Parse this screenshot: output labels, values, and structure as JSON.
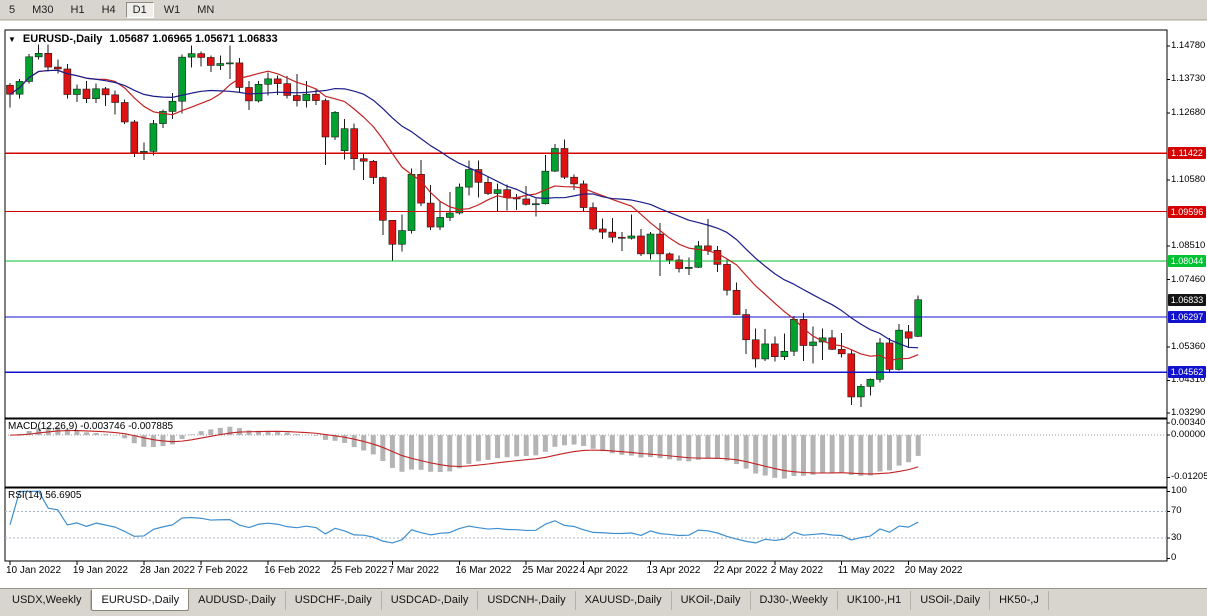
{
  "toolbar": {
    "timeframes": [
      {
        "label": "5",
        "active": false
      },
      {
        "label": "M30",
        "active": false
      },
      {
        "label": "H1",
        "active": false
      },
      {
        "label": "H4",
        "active": false
      },
      {
        "label": "D1",
        "active": true
      },
      {
        "label": "W1",
        "active": false
      },
      {
        "label": "MN",
        "active": false
      }
    ]
  },
  "chart": {
    "marker": "▼",
    "symbol": "EURUSD-,Daily",
    "ohlc": "1.05687 1.06965 1.05671 1.06833",
    "colors": {
      "up": "#00A12F",
      "down": "#DE1212",
      "wick": "#1A1A1A",
      "macd_hist": "#B4B4B4",
      "macd_signal": "#C22222",
      "rsi_line": "#3F8FCF"
    },
    "price_axis": {
      "labels": [
        {
          "text": "1.14780",
          "value": 1.1478
        },
        {
          "text": "1.13730",
          "value": 1.1373
        },
        {
          "text": "1.12680",
          "value": 1.1268
        },
        {
          "text": "1.10580",
          "value": 1.1058
        },
        {
          "text": "1.08510",
          "value": 1.0851
        },
        {
          "text": "1.07460",
          "value": 1.0746
        },
        {
          "text": "1.05360",
          "value": 1.0536
        },
        {
          "text": "1.04310",
          "value": 1.0431
        },
        {
          "text": "1.03290",
          "value": 1.0329
        }
      ],
      "badges": [
        {
          "text": "1.11422",
          "value": 1.11422,
          "color": "#D40000"
        },
        {
          "text": "1.09596",
          "value": 1.09596,
          "color": "#D40000"
        },
        {
          "text": "1.08044",
          "value": 1.08044,
          "color": "#00C232"
        },
        {
          "text": "1.06833",
          "value": 1.06833,
          "color": "#141414"
        },
        {
          "text": "1.06297",
          "value": 1.06297,
          "color": "#1212CC"
        },
        {
          "text": "1.04562",
          "value": 1.04562,
          "color": "#1212CC"
        }
      ]
    }
  },
  "macd_panel": {
    "label": "MACD(12,26,9) -0.003746 -0.007885",
    "axis": [
      {
        "text": "0.00340",
        "value": 0.0034
      },
      {
        "text": "0.00000",
        "value": 0
      },
      {
        "text": "-0.01205",
        "value": -0.01205
      }
    ]
  },
  "rsi_panel": {
    "label": "RSI(14) 56.6905",
    "axis": [
      {
        "text": "100",
        "value": 100
      },
      {
        "text": "70",
        "value": 70
      },
      {
        "text": "30",
        "value": 30
      },
      {
        "text": "0",
        "value": 0
      }
    ],
    "levels": [
      70,
      30
    ]
  },
  "x_axis": [
    {
      "text": "10 Jan 2022",
      "index": 0
    },
    {
      "text": "19 Jan 2022",
      "index": 7
    },
    {
      "text": "28 Jan 2022",
      "index": 14
    },
    {
      "text": "7 Feb 2022",
      "index": 20
    },
    {
      "text": "16 Feb 2022",
      "index": 27
    },
    {
      "text": "25 Feb 2022",
      "index": 34
    },
    {
      "text": "7 Mar 2022",
      "index": 40
    },
    {
      "text": "16 Mar 2022",
      "index": 47
    },
    {
      "text": "25 Mar 2022",
      "index": 54
    },
    {
      "text": "4 Apr 2022",
      "index": 60
    },
    {
      "text": "13 Apr 2022",
      "index": 67
    },
    {
      "text": "22 Apr 2022",
      "index": 74
    },
    {
      "text": "2 May 2022",
      "index": 80
    },
    {
      "text": "11 May 2022",
      "index": 87
    },
    {
      "text": "20 May 2022",
      "index": 94
    }
  ],
  "tabs": [
    {
      "label": "USDX,Weekly",
      "active": false
    },
    {
      "label": "EURUSD-,Daily",
      "active": true
    },
    {
      "label": "AUDUSD-,Daily",
      "active": false
    },
    {
      "label": "USDCHF-,Daily",
      "active": false
    },
    {
      "label": "USDCAD-,Daily",
      "active": false
    },
    {
      "label": "USDCNH-,Daily",
      "active": false
    },
    {
      "label": "XAUUSD-,Daily",
      "active": false
    },
    {
      "label": "UKOil-,Daily",
      "active": false
    },
    {
      "label": "DJ30-,Weekly",
      "active": false
    },
    {
      "label": "UK100-,H1",
      "active": false
    },
    {
      "label": "USOil-,Daily",
      "active": false
    },
    {
      "label": "HK50-,J",
      "active": false
    }
  ],
  "chart_data": {
    "type": "candlestick",
    "symbol": "EURUSD",
    "timeframe": "Daily",
    "title": "EURUSD-,Daily 1.05687 1.06965 1.05671 1.06833",
    "ylim": [
      1.0313,
      1.1528
    ],
    "dates": [
      "2022-01-10",
      "2022-01-11",
      "2022-01-12",
      "2022-01-13",
      "2022-01-14",
      "2022-01-17",
      "2022-01-18",
      "2022-01-19",
      "2022-01-20",
      "2022-01-21",
      "2022-01-24",
      "2022-01-25",
      "2022-01-26",
      "2022-01-27",
      "2022-01-28",
      "2022-01-31",
      "2022-02-01",
      "2022-02-02",
      "2022-02-03",
      "2022-02-04",
      "2022-02-07",
      "2022-02-08",
      "2022-02-09",
      "2022-02-10",
      "2022-02-11",
      "2022-02-14",
      "2022-02-15",
      "2022-02-16",
      "2022-02-17",
      "2022-02-18",
      "2022-02-21",
      "2022-02-22",
      "2022-02-23",
      "2022-02-24",
      "2022-02-25",
      "2022-02-28",
      "2022-03-01",
      "2022-03-02",
      "2022-03-03",
      "2022-03-04",
      "2022-03-07",
      "2022-03-08",
      "2022-03-09",
      "2022-03-10",
      "2022-03-11",
      "2022-03-14",
      "2022-03-15",
      "2022-03-16",
      "2022-03-17",
      "2022-03-18",
      "2022-03-21",
      "2022-03-22",
      "2022-03-23",
      "2022-03-24",
      "2022-03-25",
      "2022-03-28",
      "2022-03-29",
      "2022-03-30",
      "2022-03-31",
      "2022-04-01",
      "2022-04-04",
      "2022-04-05",
      "2022-04-06",
      "2022-04-07",
      "2022-04-08",
      "2022-04-11",
      "2022-04-12",
      "2022-04-13",
      "2022-04-14",
      "2022-04-15",
      "2022-04-18",
      "2022-04-19",
      "2022-04-20",
      "2022-04-21",
      "2022-04-22",
      "2022-04-25",
      "2022-04-26",
      "2022-04-27",
      "2022-04-28",
      "2022-04-29",
      "2022-05-02",
      "2022-05-03",
      "2022-05-04",
      "2022-05-05",
      "2022-05-06",
      "2022-05-09",
      "2022-05-10",
      "2022-05-11",
      "2022-05-12",
      "2022-05-13",
      "2022-05-16",
      "2022-05-17",
      "2022-05-18",
      "2022-05-19",
      "2022-05-20",
      "2022-05-23"
    ],
    "ohlc": [
      [
        1.1355,
        1.1362,
        1.1285,
        1.1327
      ],
      [
        1.1327,
        1.1375,
        1.1314,
        1.1367
      ],
      [
        1.1367,
        1.1453,
        1.1361,
        1.1444
      ],
      [
        1.1444,
        1.1482,
        1.1435,
        1.1455
      ],
      [
        1.1455,
        1.1483,
        1.1398,
        1.1412
      ],
      [
        1.1412,
        1.1435,
        1.1392,
        1.1406
      ],
      [
        1.1406,
        1.1422,
        1.1314,
        1.1326
      ],
      [
        1.1326,
        1.1358,
        1.1302,
        1.1343
      ],
      [
        1.1343,
        1.1369,
        1.13,
        1.1313
      ],
      [
        1.1313,
        1.136,
        1.13,
        1.1344
      ],
      [
        1.1344,
        1.1349,
        1.129,
        1.1325
      ],
      [
        1.1325,
        1.1339,
        1.1263,
        1.1301
      ],
      [
        1.1301,
        1.131,
        1.1234,
        1.124
      ],
      [
        1.124,
        1.1246,
        1.1131,
        1.1144
      ],
      [
        1.1144,
        1.1175,
        1.1121,
        1.1148
      ],
      [
        1.1148,
        1.1246,
        1.1135,
        1.1235
      ],
      [
        1.1235,
        1.1279,
        1.1221,
        1.1273
      ],
      [
        1.1273,
        1.133,
        1.125,
        1.1305
      ],
      [
        1.1305,
        1.1452,
        1.1266,
        1.1443
      ],
      [
        1.1443,
        1.148,
        1.1411,
        1.1454
      ],
      [
        1.1454,
        1.146,
        1.1414,
        1.1442
      ],
      [
        1.1442,
        1.1448,
        1.1396,
        1.1417
      ],
      [
        1.1417,
        1.1448,
        1.1403,
        1.1423
      ],
      [
        1.1423,
        1.148,
        1.1375,
        1.1425
      ],
      [
        1.1425,
        1.144,
        1.133,
        1.1348
      ],
      [
        1.1348,
        1.1369,
        1.1278,
        1.1306
      ],
      [
        1.1306,
        1.1369,
        1.1301,
        1.1358
      ],
      [
        1.1358,
        1.1395,
        1.1323,
        1.1375
      ],
      [
        1.1375,
        1.1385,
        1.1324,
        1.136
      ],
      [
        1.136,
        1.1384,
        1.1313,
        1.1323
      ],
      [
        1.1323,
        1.139,
        1.1288,
        1.1307
      ],
      [
        1.1307,
        1.1368,
        1.1286,
        1.1327
      ],
      [
        1.1327,
        1.1342,
        1.1293,
        1.1307
      ],
      [
        1.1307,
        1.1314,
        1.1106,
        1.1193
      ],
      [
        1.1193,
        1.1274,
        1.1184,
        1.127
      ],
      [
        1.115,
        1.125,
        1.1122,
        1.1219
      ],
      [
        1.1219,
        1.1235,
        1.109,
        1.1125
      ],
      [
        1.1125,
        1.1144,
        1.1058,
        1.1117
      ],
      [
        1.1117,
        1.1121,
        1.1045,
        1.1066
      ],
      [
        1.1066,
        1.1069,
        1.0886,
        1.0932
      ],
      [
        1.0932,
        1.0932,
        1.0806,
        1.0857
      ],
      [
        1.0857,
        1.095,
        1.0834,
        1.09
      ],
      [
        1.09,
        1.1095,
        1.0891,
        1.1076
      ],
      [
        1.1076,
        1.1121,
        1.0977,
        1.0986
      ],
      [
        1.0986,
        1.1043,
        1.0901,
        1.0911
      ],
      [
        1.0911,
        1.0992,
        1.0901,
        1.0941
      ],
      [
        1.0941,
        1.102,
        1.093,
        1.0955
      ],
      [
        1.0955,
        1.1047,
        1.095,
        1.1036
      ],
      [
        1.1036,
        1.1119,
        1.1009,
        1.1091
      ],
      [
        1.1091,
        1.1119,
        1.1003,
        1.1051
      ],
      [
        1.1051,
        1.1069,
        1.1012,
        1.1016
      ],
      [
        1.1016,
        1.1047,
        1.0961,
        1.1028
      ],
      [
        1.1028,
        1.1044,
        1.0963,
        1.1003
      ],
      [
        1.1003,
        1.1014,
        1.0965,
        1.0999
      ],
      [
        1.0999,
        1.1039,
        1.0979,
        1.0982
      ],
      [
        1.0982,
        1.1,
        1.0944,
        1.0984
      ],
      [
        1.0984,
        1.1137,
        1.0982,
        1.1086
      ],
      [
        1.1086,
        1.1171,
        1.1084,
        1.1157
      ],
      [
        1.1157,
        1.1185,
        1.1061,
        1.1067
      ],
      [
        1.1067,
        1.1076,
        1.1027,
        1.1046
      ],
      [
        1.1046,
        1.1056,
        1.096,
        1.0972
      ],
      [
        1.0972,
        1.0988,
        1.09,
        1.0905
      ],
      [
        1.0905,
        1.0937,
        1.0874,
        1.0895
      ],
      [
        1.0895,
        1.0939,
        1.0862,
        1.0879
      ],
      [
        1.0879,
        1.0896,
        1.0836,
        1.0876
      ],
      [
        1.0876,
        1.095,
        1.0872,
        1.0883
      ],
      [
        1.0883,
        1.0905,
        1.0821,
        1.0827
      ],
      [
        1.0827,
        1.0895,
        1.0809,
        1.0889
      ],
      [
        1.0889,
        1.0924,
        1.0757,
        1.0827
      ],
      [
        1.0827,
        1.0832,
        1.0796,
        1.0808
      ],
      [
        1.0808,
        1.0822,
        1.0769,
        1.0781
      ],
      [
        1.0781,
        1.0815,
        1.0761,
        1.0785
      ],
      [
        1.0785,
        1.0867,
        1.0782,
        1.0852
      ],
      [
        1.0852,
        1.0936,
        1.0824,
        1.0838
      ],
      [
        1.0838,
        1.0852,
        1.077,
        1.0794
      ],
      [
        1.0794,
        1.081,
        1.0697,
        1.0713
      ],
      [
        1.0713,
        1.0738,
        1.0635,
        1.0637
      ],
      [
        1.0637,
        1.0655,
        1.0514,
        1.0558
      ],
      [
        1.0558,
        1.0594,
        1.0471,
        1.0498
      ],
      [
        1.0498,
        1.0592,
        1.0492,
        1.0545
      ],
      [
        1.0545,
        1.0568,
        1.049,
        1.0505
      ],
      [
        1.0505,
        1.0578,
        1.0494,
        1.0522
      ],
      [
        1.0522,
        1.0632,
        1.0507,
        1.0622
      ],
      [
        1.0622,
        1.0642,
        1.0492,
        1.054
      ],
      [
        1.054,
        1.0599,
        1.0483,
        1.0551
      ],
      [
        1.0551,
        1.0594,
        1.0495,
        1.0564
      ],
      [
        1.0564,
        1.0588,
        1.0526,
        1.0528
      ],
      [
        1.0528,
        1.0579,
        1.0502,
        1.0514
      ],
      [
        1.0514,
        1.0525,
        1.0354,
        1.0379
      ],
      [
        1.0379,
        1.042,
        1.0348,
        1.0412
      ],
      [
        1.0412,
        1.0437,
        1.0384,
        1.0434
      ],
      [
        1.0434,
        1.0564,
        1.0424,
        1.0548
      ],
      [
        1.0548,
        1.0564,
        1.0459,
        1.0465
      ],
      [
        1.0465,
        1.0607,
        1.0462,
        1.0588
      ],
      [
        1.0583,
        1.0604,
        1.0532,
        1.0563
      ],
      [
        1.05687,
        1.06965,
        1.05671,
        1.06833
      ]
    ],
    "h_lines": [
      {
        "value": 1.11422,
        "color": "#D40000",
        "type": "resistance"
      },
      {
        "value": 1.09596,
        "color": "#D40000",
        "type": "resistance"
      },
      {
        "value": 1.08044,
        "color": "#00C232",
        "type": "level"
      },
      {
        "value": 1.06297,
        "color": "#1212CC",
        "type": "support"
      },
      {
        "value": 1.04562,
        "color": "#1212CC",
        "type": "support"
      }
    ],
    "moving_averages": [
      {
        "period": 10,
        "color": "#C22222"
      },
      {
        "period": 20,
        "color": "#1C1C8A"
      }
    ],
    "macd": {
      "fast": 12,
      "slow": 26,
      "signal": 9,
      "current_main": -0.003746,
      "current_signal": -0.007885
    },
    "rsi": {
      "period": 14,
      "current": 56.6905
    }
  }
}
